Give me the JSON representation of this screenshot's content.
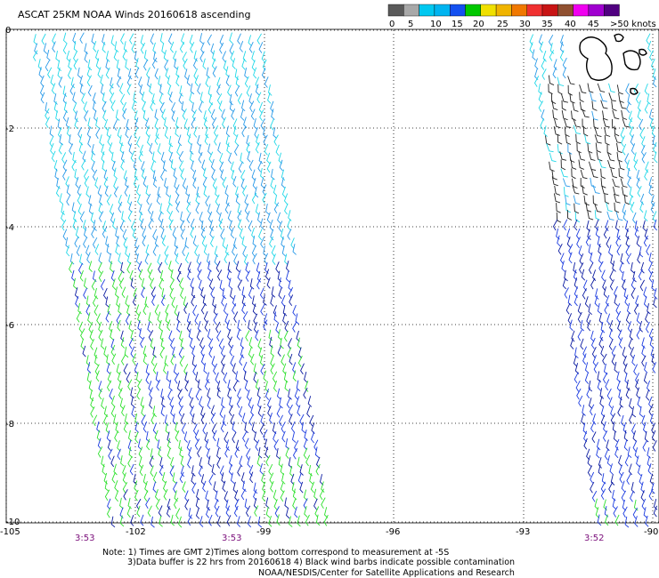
{
  "title": "ASCAT 25KM NOAA Winds 20160618 ascending",
  "legend": {
    "labels": [
      "0",
      "5",
      "10",
      "15",
      "20",
      "25",
      "30",
      "35",
      "40",
      "45",
      ">50 knots"
    ],
    "colors": [
      "#5a5a5a",
      "#a8a8a8",
      "#00c8f0",
      "#00b4f0",
      "#1450f0",
      "#00c800",
      "#f0e000",
      "#f0b400",
      "#f07800",
      "#f03030",
      "#c81414",
      "#905030",
      "#f000f0",
      "#a000d0",
      "#500080"
    ]
  },
  "axes": {
    "lat_labels": [
      "0",
      "-2",
      "-4",
      "-6",
      "-8",
      "-10"
    ],
    "lon_labels": [
      "-105",
      "-102",
      "-99",
      "-96",
      "-93",
      "-90"
    ]
  },
  "pass_times": [
    "3:53",
    "3:53",
    "3:52"
  ],
  "notes": [
    "Note: 1) Times are GMT 2)Times along bottom correspond to measurement at -5S",
    "3)Data buffer is 22 hrs from 20160618 4) Black wind barbs indicate possible contamination",
    "NOAA/NESDIS/Center for Satellite Applications and Research"
  ],
  "barb_colors": {
    "cyan": "#22d8e8",
    "light_blue": "#2a9ae8",
    "blue": "#1c3ce0",
    "navy": "#0a1aa0",
    "green": "#2ee02e",
    "contaminated": "#222222"
  }
}
